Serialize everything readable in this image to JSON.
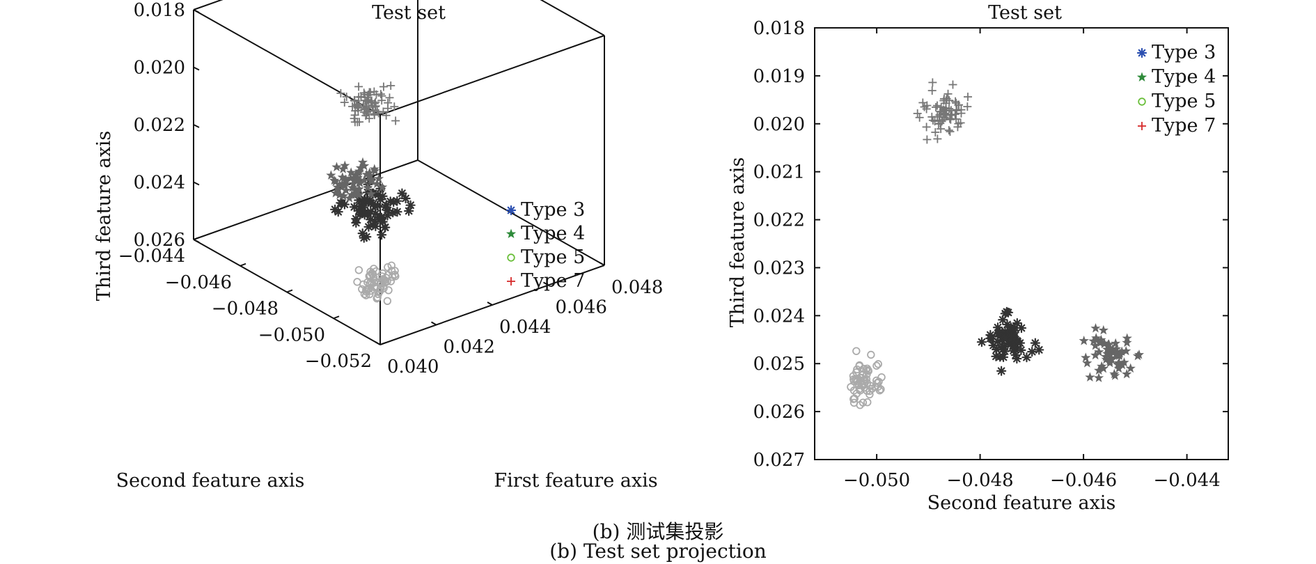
{
  "chart_data": [
    {
      "type": "scatter",
      "projection": "3d",
      "title": "Test set",
      "xlabel": "First feature axis",
      "ylabel": "Second feature axis",
      "zlabel": "Third feature axis",
      "xlim": [
        0.04,
        0.048
      ],
      "ylim": [
        -0.052,
        -0.044
      ],
      "zlim": [
        0.018,
        0.026
      ],
      "z_reversed": true,
      "xticks": [
        "0.040",
        "0.042",
        "0.044",
        "0.046",
        "0.048"
      ],
      "yticks": [
        "-0.044",
        "-0.046",
        "-0.048",
        "-0.050",
        "-0.052"
      ],
      "zticks": [
        "0.018",
        "0.020",
        "0.022",
        "0.024",
        "0.026"
      ],
      "legend_position": "right",
      "legend": [
        {
          "name": "Type 3",
          "marker": "asterisk",
          "color": "#2b4fb0"
        },
        {
          "name": "Type 4",
          "marker": "star",
          "color": "#2e8b3a"
        },
        {
          "name": "Type 5",
          "marker": "circle",
          "color": "#6abf3a"
        },
        {
          "name": "Type 7",
          "marker": "plus",
          "color": "#d62a2a"
        }
      ],
      "series": [
        {
          "name": "Type 3",
          "marker": "asterisk",
          "color": "#333333",
          "center": [
            0.0435,
            -0.0475,
            0.0245
          ],
          "spread": [
            0.0006,
            0.0007,
            0.0006
          ],
          "count": 70
        },
        {
          "name": "Type 4",
          "marker": "star",
          "color": "#666666",
          "center": [
            0.0445,
            -0.0455,
            0.0248
          ],
          "spread": [
            0.0006,
            0.0005,
            0.0005
          ],
          "count": 60
        },
        {
          "name": "Type 5",
          "marker": "circle",
          "color": "#aaaaaa",
          "center": [
            0.0415,
            -0.05,
            0.0253
          ],
          "spread": [
            0.0005,
            0.0003,
            0.0004
          ],
          "count": 60
        },
        {
          "name": "Type 7",
          "marker": "plus",
          "color": "#777777",
          "center": [
            0.042,
            -0.049,
            0.0197
          ],
          "spread": [
            0.0005,
            0.0004,
            0.0005
          ],
          "count": 70
        }
      ]
    },
    {
      "type": "scatter",
      "title": "Test set",
      "xlabel": "Second feature axis",
      "ylabel": "Third feature axis",
      "xlim": [
        -0.0512,
        -0.0432
      ],
      "ylim": [
        0.018,
        0.027
      ],
      "y_reversed": true,
      "xticks": [
        "-0.050",
        "-0.048",
        "-0.046",
        "-0.044"
      ],
      "yticks": [
        "0.018",
        "0.019",
        "0.020",
        "0.021",
        "0.022",
        "0.023",
        "0.024",
        "0.025",
        "0.026",
        "0.027"
      ],
      "legend_position": "top-right",
      "legend": [
        {
          "name": "Type 3",
          "marker": "asterisk",
          "color": "#2b4fb0"
        },
        {
          "name": "Type 4",
          "marker": "star",
          "color": "#2e8b3a"
        },
        {
          "name": "Type 5",
          "marker": "circle",
          "color": "#6abf3a"
        },
        {
          "name": "Type 7",
          "marker": "plus",
          "color": "#d62a2a"
        }
      ],
      "series": [
        {
          "name": "Type 3",
          "marker": "asterisk",
          "color": "#333333",
          "center": [
            -0.0475,
            0.0245
          ],
          "spread": [
            0.0004,
            0.0004
          ],
          "count": 70
        },
        {
          "name": "Type 4",
          "marker": "star",
          "color": "#666666",
          "center": [
            -0.0455,
            0.0248
          ],
          "spread": [
            0.0004,
            0.0004
          ],
          "count": 60
        },
        {
          "name": "Type 5",
          "marker": "circle",
          "color": "#aaaaaa",
          "center": [
            -0.0502,
            0.0254
          ],
          "spread": [
            0.0003,
            0.0004
          ],
          "count": 60
        },
        {
          "name": "Type 7",
          "marker": "plus",
          "color": "#777777",
          "center": [
            -0.0487,
            0.0197
          ],
          "spread": [
            0.0004,
            0.0004
          ],
          "count": 70
        }
      ]
    }
  ],
  "caption": {
    "line1": "(b) 测试集投影",
    "line2": "(b) Test set projection"
  }
}
